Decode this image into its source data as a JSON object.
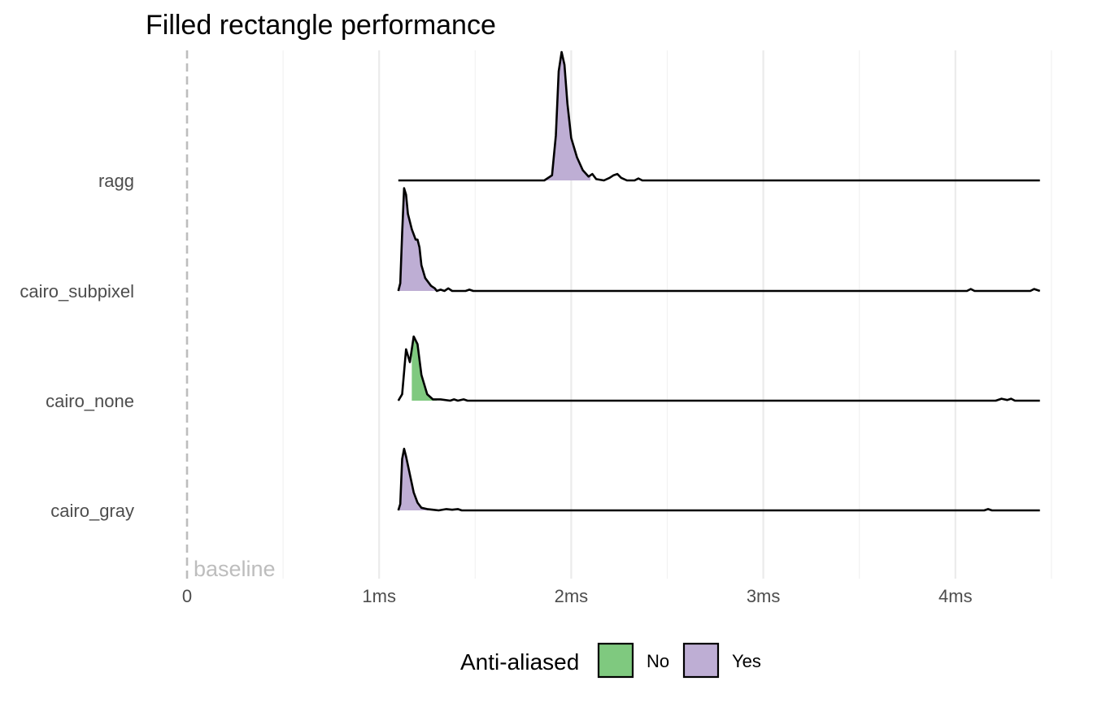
{
  "chart_data": {
    "type": "area",
    "subtype": "ridgeline density",
    "title": "Filled rectangle performance",
    "xlabel": "",
    "ylabel": "",
    "x_unit": "ms",
    "xlim": [
      0,
      4.5
    ],
    "x_ticks": [
      {
        "value": 0,
        "label": "0"
      },
      {
        "value": 1,
        "label": "1ms"
      },
      {
        "value": 2,
        "label": "2ms"
      },
      {
        "value": 3,
        "label": "3ms"
      },
      {
        "value": 4,
        "label": "4ms"
      }
    ],
    "grid": true,
    "baseline": {
      "value": 0,
      "label": "baseline",
      "color": "#bdbdbd",
      "style": "dashed"
    },
    "categories": [
      "cairo_gray",
      "cairo_none",
      "cairo_subpixel",
      "ragg"
    ],
    "legend": {
      "title": "Anti-aliased",
      "position": "bottom",
      "entries": [
        {
          "label": "No",
          "color": "#7fc97f"
        },
        {
          "label": "Yes",
          "color": "#beaed4"
        }
      ]
    },
    "series": [
      {
        "category": "ragg",
        "anti_aliased": "Yes",
        "fill_range": [
          1.82,
          2.1
        ],
        "points": [
          [
            1.1,
            0
          ],
          [
            1.86,
            0
          ],
          [
            1.9,
            0.04
          ],
          [
            1.92,
            0.35
          ],
          [
            1.935,
            0.85
          ],
          [
            1.95,
            1.0
          ],
          [
            1.965,
            0.9
          ],
          [
            1.98,
            0.6
          ],
          [
            2.0,
            0.33
          ],
          [
            2.03,
            0.18
          ],
          [
            2.06,
            0.08
          ],
          [
            2.09,
            0.03
          ],
          [
            2.11,
            0.05
          ],
          [
            2.13,
            0.01
          ],
          [
            2.17,
            0
          ],
          [
            2.2,
            0.02
          ],
          [
            2.22,
            0.04
          ],
          [
            2.24,
            0.05
          ],
          [
            2.26,
            0.02
          ],
          [
            2.29,
            0
          ],
          [
            2.33,
            0
          ],
          [
            2.35,
            0.015
          ],
          [
            2.37,
            0
          ],
          [
            4.44,
            0
          ]
        ]
      },
      {
        "category": "cairo_subpixel",
        "anti_aliased": "Yes",
        "fill_range": [
          1.1,
          1.32
        ],
        "points": [
          [
            1.1,
            0
          ],
          [
            1.11,
            0.06
          ],
          [
            1.12,
            0.45
          ],
          [
            1.13,
            0.8
          ],
          [
            1.14,
            0.75
          ],
          [
            1.15,
            0.6
          ],
          [
            1.17,
            0.48
          ],
          [
            1.19,
            0.4
          ],
          [
            1.2,
            0.4
          ],
          [
            1.21,
            0.34
          ],
          [
            1.22,
            0.2
          ],
          [
            1.24,
            0.1
          ],
          [
            1.27,
            0.04
          ],
          [
            1.29,
            0.02
          ],
          [
            1.3,
            0
          ],
          [
            1.32,
            0.01
          ],
          [
            1.34,
            0
          ],
          [
            1.36,
            0.02
          ],
          [
            1.38,
            0
          ],
          [
            1.45,
            0
          ],
          [
            1.47,
            0.01
          ],
          [
            1.49,
            0
          ],
          [
            4.06,
            0
          ],
          [
            4.08,
            0.015
          ],
          [
            4.1,
            0
          ],
          [
            4.39,
            0
          ],
          [
            4.41,
            0.015
          ],
          [
            4.44,
            0
          ]
        ]
      },
      {
        "category": "cairo_none",
        "anti_aliased": "No",
        "fill_range": [
          1.17,
          1.3
        ],
        "points": [
          [
            1.1,
            0
          ],
          [
            1.12,
            0.05
          ],
          [
            1.14,
            0.4
          ],
          [
            1.16,
            0.3
          ],
          [
            1.18,
            0.5
          ],
          [
            1.2,
            0.44
          ],
          [
            1.22,
            0.2
          ],
          [
            1.25,
            0.05
          ],
          [
            1.28,
            0.01
          ],
          [
            1.32,
            0.01
          ],
          [
            1.37,
            0
          ],
          [
            1.39,
            0.01
          ],
          [
            1.41,
            0
          ],
          [
            1.44,
            0.01
          ],
          [
            1.46,
            0
          ],
          [
            4.21,
            0
          ],
          [
            4.24,
            0.015
          ],
          [
            4.27,
            0.005
          ],
          [
            4.29,
            0.015
          ],
          [
            4.31,
            0
          ],
          [
            4.44,
            0
          ]
        ]
      },
      {
        "category": "cairo_gray",
        "anti_aliased": "Yes",
        "fill_range": [
          1.1,
          1.3
        ],
        "points": [
          [
            1.1,
            0
          ],
          [
            1.11,
            0.05
          ],
          [
            1.12,
            0.4
          ],
          [
            1.13,
            0.48
          ],
          [
            1.14,
            0.42
          ],
          [
            1.16,
            0.28
          ],
          [
            1.18,
            0.14
          ],
          [
            1.2,
            0.06
          ],
          [
            1.22,
            0.02
          ],
          [
            1.25,
            0.01
          ],
          [
            1.28,
            0.005
          ],
          [
            1.31,
            0
          ],
          [
            1.35,
            0.01
          ],
          [
            1.38,
            0.005
          ],
          [
            1.41,
            0.01
          ],
          [
            1.43,
            0
          ],
          [
            4.15,
            0
          ],
          [
            4.17,
            0.01
          ],
          [
            4.19,
            0
          ],
          [
            4.44,
            0
          ]
        ]
      }
    ],
    "colors": {
      "no": "#7fc97f",
      "yes": "#beaed4",
      "grid": "#ebebeb",
      "baseline": "#bdbdbd"
    }
  }
}
